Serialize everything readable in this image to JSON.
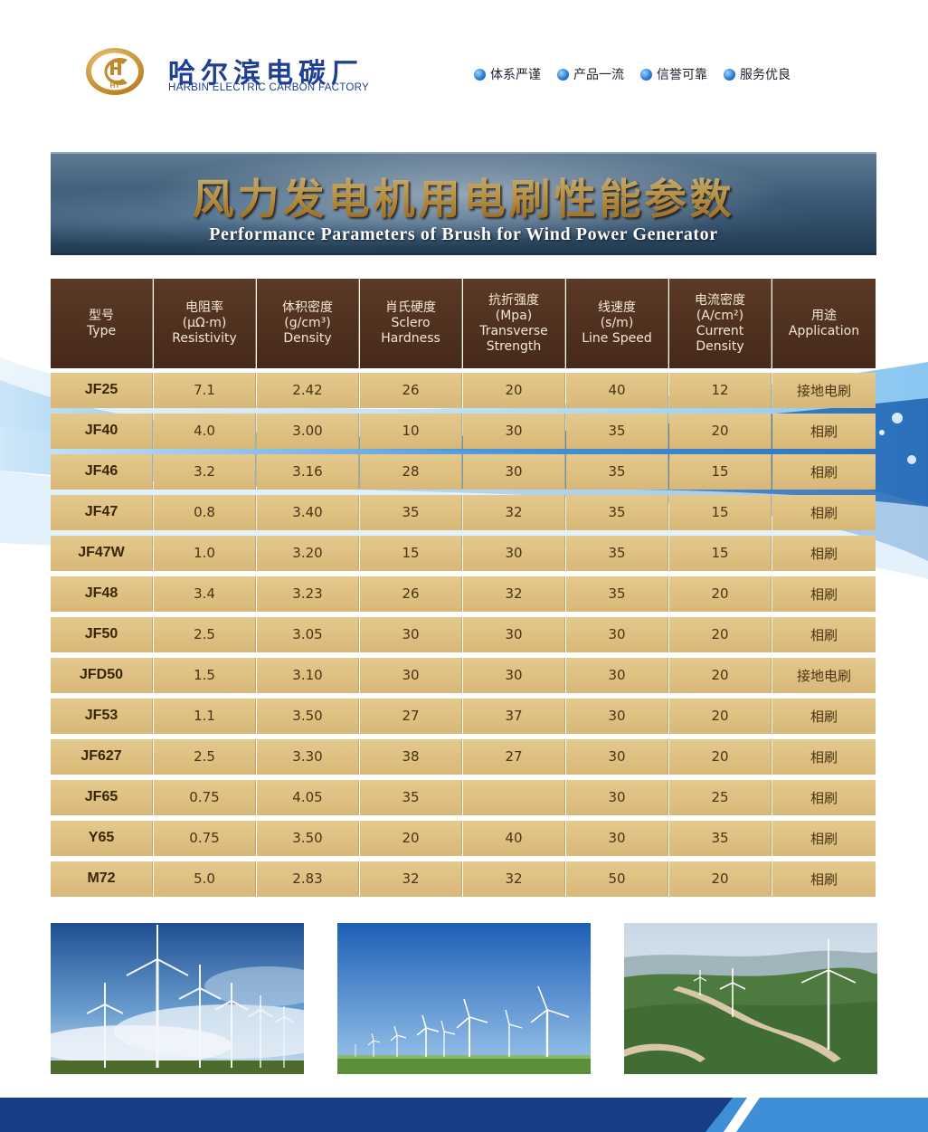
{
  "brand": {
    "name_cn": "哈尔滨电碳厂",
    "name_en": "HARBIN ELECTRIC CARBON FACTORY",
    "logo_letters": "HT"
  },
  "slogans": [
    "体系严谨",
    "产品一流",
    "信誉可靠",
    "服务优良"
  ],
  "title": {
    "cn": "风力发电机用电刷性能参数",
    "en": "Performance Parameters of Brush for Wind Power Generator"
  },
  "table": {
    "headers": [
      {
        "cn": "型号",
        "unit": "",
        "en": "Type"
      },
      {
        "cn": "电阻率",
        "unit": "(μΩ·m)",
        "en": "Resistivity"
      },
      {
        "cn": "体积密度",
        "unit": "(g/cm³)",
        "en": "Density"
      },
      {
        "cn": "肖氏硬度",
        "unit": "",
        "en": "Sclero Hardness"
      },
      {
        "cn": "抗折强度",
        "unit": "(Mpa)",
        "en": "Transverse Strength"
      },
      {
        "cn": "线速度",
        "unit": "(s/m)",
        "en": "Line Speed"
      },
      {
        "cn": "电流密度",
        "unit": "(A/cm²)",
        "en": "Current Density"
      },
      {
        "cn": "用途",
        "unit": "",
        "en": "Application"
      }
    ],
    "rows": [
      [
        "JF25",
        "7.1",
        "2.42",
        "26",
        "20",
        "40",
        "12",
        "接地电刷"
      ],
      [
        "JF40",
        "4.0",
        "3.00",
        "10",
        "30",
        "35",
        "20",
        "相刷"
      ],
      [
        "JF46",
        "3.2",
        "3.16",
        "28",
        "30",
        "35",
        "15",
        "相刷"
      ],
      [
        "JF47",
        "0.8",
        "3.40",
        "35",
        "32",
        "35",
        "15",
        "相刷"
      ],
      [
        "JF47W",
        "1.0",
        "3.20",
        "15",
        "30",
        "35",
        "15",
        "相刷"
      ],
      [
        "JF48",
        "3.4",
        "3.23",
        "26",
        "32",
        "35",
        "20",
        "相刷"
      ],
      [
        "JF50",
        "2.5",
        "3.05",
        "30",
        "30",
        "30",
        "20",
        "相刷"
      ],
      [
        "JFD50",
        "1.5",
        "3.10",
        "30",
        "30",
        "30",
        "20",
        "接地电刷"
      ],
      [
        "JF53",
        "1.1",
        "3.50",
        "27",
        "37",
        "30",
        "20",
        "相刷"
      ],
      [
        "JF627",
        "2.5",
        "3.30",
        "38",
        "27",
        "30",
        "20",
        "相刷"
      ],
      [
        "JF65",
        "0.75",
        "4.05",
        "35",
        "",
        "30",
        "25",
        "相刷"
      ],
      [
        "Y65",
        "0.75",
        "3.50",
        "20",
        "40",
        "30",
        "35",
        "相刷"
      ],
      [
        "M72",
        "5.0",
        "2.83",
        "32",
        "32",
        "50",
        "20",
        "相刷"
      ]
    ]
  },
  "photos": [
    "wind-turbines-cloudy-sky",
    "wind-farm-blue-sky",
    "wind-farm-mountain-ridge"
  ],
  "colors": {
    "brand_blue": "#1f3f94",
    "header_brown": "#4e301f",
    "cell_gold": "#dcbf81",
    "title_gold": "#f0c968"
  }
}
